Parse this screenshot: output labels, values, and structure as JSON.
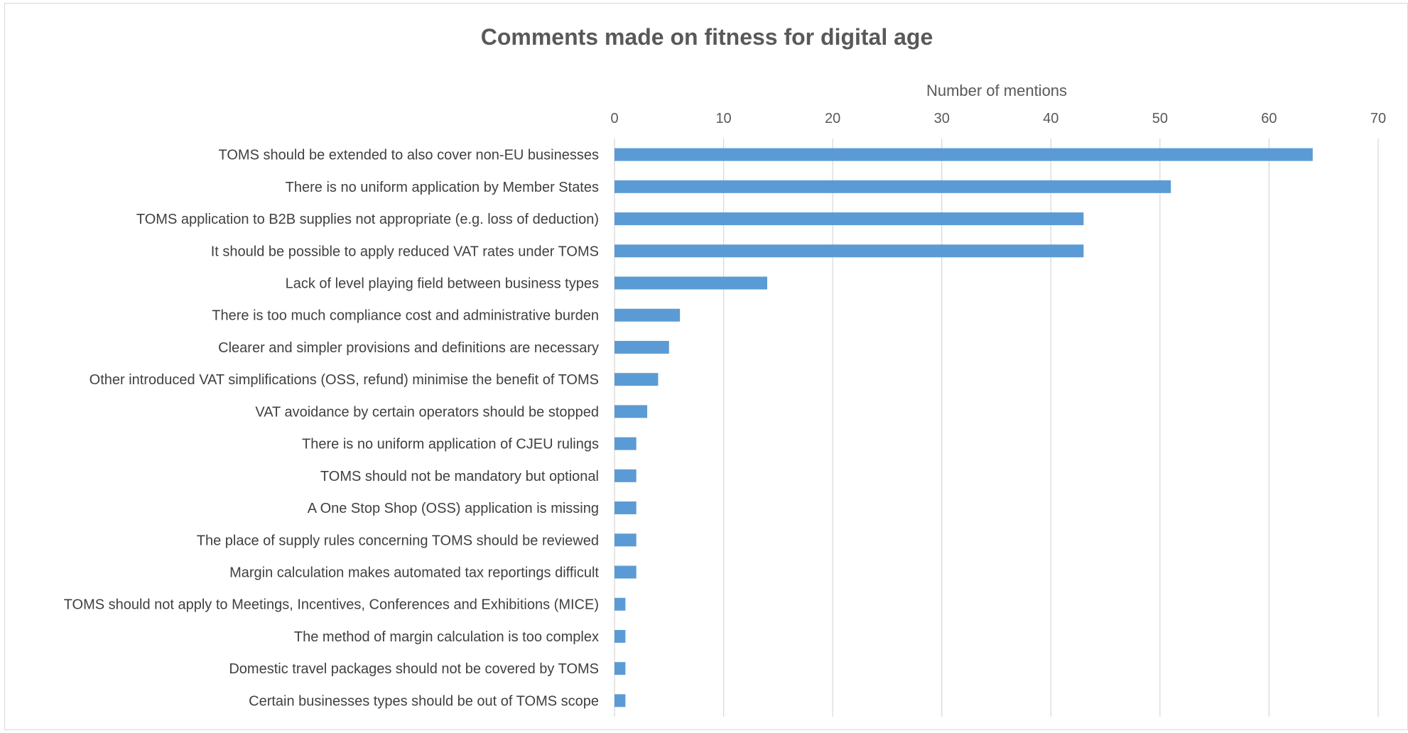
{
  "chart_data": {
    "type": "bar",
    "orientation": "horizontal",
    "title": "Comments made on fitness for digital age",
    "xlabel": "Number of mentions",
    "ylabel": "",
    "xlim": [
      0,
      70
    ],
    "x_ticks": [
      0,
      10,
      20,
      30,
      40,
      50,
      60,
      70
    ],
    "grid": true,
    "x_axis_position": "top",
    "bar_color": "#5b9bd5",
    "categories": [
      "TOMS should be extended to also cover non-EU businesses",
      "There is no uniform application by Member States",
      "TOMS application to B2B supplies not appropriate (e.g. loss of deduction)",
      "It should be possible to apply reduced VAT rates under TOMS",
      "Lack of level playing field between business types",
      "There is too much compliance cost and administrative burden",
      "Clearer and simpler provisions and definitions are necessary",
      "Other introduced VAT simplifications (OSS, refund) minimise the benefit of TOMS",
      "VAT avoidance by certain operators should be stopped",
      "There is no uniform application of CJEU rulings",
      "TOMS should not be mandatory but optional",
      "A One Stop Shop (OSS) application is missing",
      "The place of supply rules concerning TOMS should be reviewed",
      "Margin calculation makes automated tax reportings difficult",
      "TOMS should not apply to Meetings, Incentives, Conferences and Exhibitions (MICE)",
      "The method of margin calculation is too complex",
      "Domestic travel packages should not be covered by TOMS",
      "Certain businesses types should be out of TOMS scope"
    ],
    "values": [
      64,
      51,
      43,
      43,
      14,
      6,
      5,
      4,
      3,
      2,
      2,
      2,
      2,
      2,
      1,
      1,
      1,
      1
    ]
  }
}
